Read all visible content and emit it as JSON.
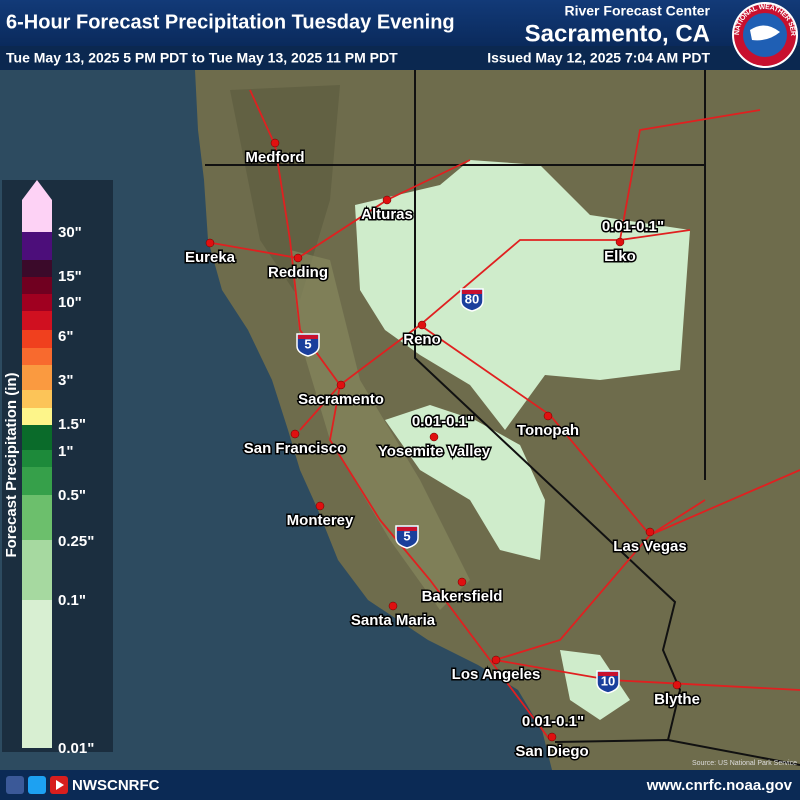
{
  "header": {
    "title": "6-Hour Forecast Precipitation Tuesday Evening",
    "center": "River Forecast Center",
    "location": "Sacramento, CA",
    "valid_period": "Tue May 13, 2025 5 PM PDT to Tue May 13, 2025 11 PM PDT",
    "issued": "Issued May 12, 2025 7:04 AM PDT",
    "logo_text": "NATIONAL WEATHER SERVICE"
  },
  "legend": {
    "title": "Forecast Precipitation (in)",
    "labels": [
      "30\"",
      "15\"",
      "10\"",
      "6\"",
      "3\"",
      "1.5\"",
      "1\"",
      "0.5\"",
      "0.25\"",
      "0.1\"",
      "0.01\""
    ],
    "colors": [
      "#fdd2f5",
      "#4c0e7a",
      "#3b0a2a",
      "#700020",
      "#a00020",
      "#d01020",
      "#f0401e",
      "#f86a2e",
      "#fa9a40",
      "#fcc458",
      "#fdf58a",
      "#0a6b2a",
      "#1d8a3a",
      "#36a04a",
      "#6cbf6c",
      "#a6d9a0",
      "#d8efd2"
    ]
  },
  "map": {
    "cities": [
      "Medford",
      "Alturas",
      "Eureka",
      "Redding",
      "Elko",
      "Reno",
      "Sacramento",
      "San Francisco",
      "Yosemite Valley",
      "Tonopah",
      "Monterey",
      "Las Vegas",
      "Bakersfield",
      "Santa Maria",
      "Los Angeles",
      "Blythe",
      "San Diego"
    ],
    "annotations": [
      "0.01-0.1\"",
      "0.01-0.1\"",
      "0.01-0.1\""
    ],
    "shields": [
      "80",
      "5",
      "5",
      "10"
    ],
    "source": "Source: US National Park Service"
  },
  "footer": {
    "handle": "NWSCNRFC",
    "url": "www.cnrfc.noaa.gov"
  }
}
